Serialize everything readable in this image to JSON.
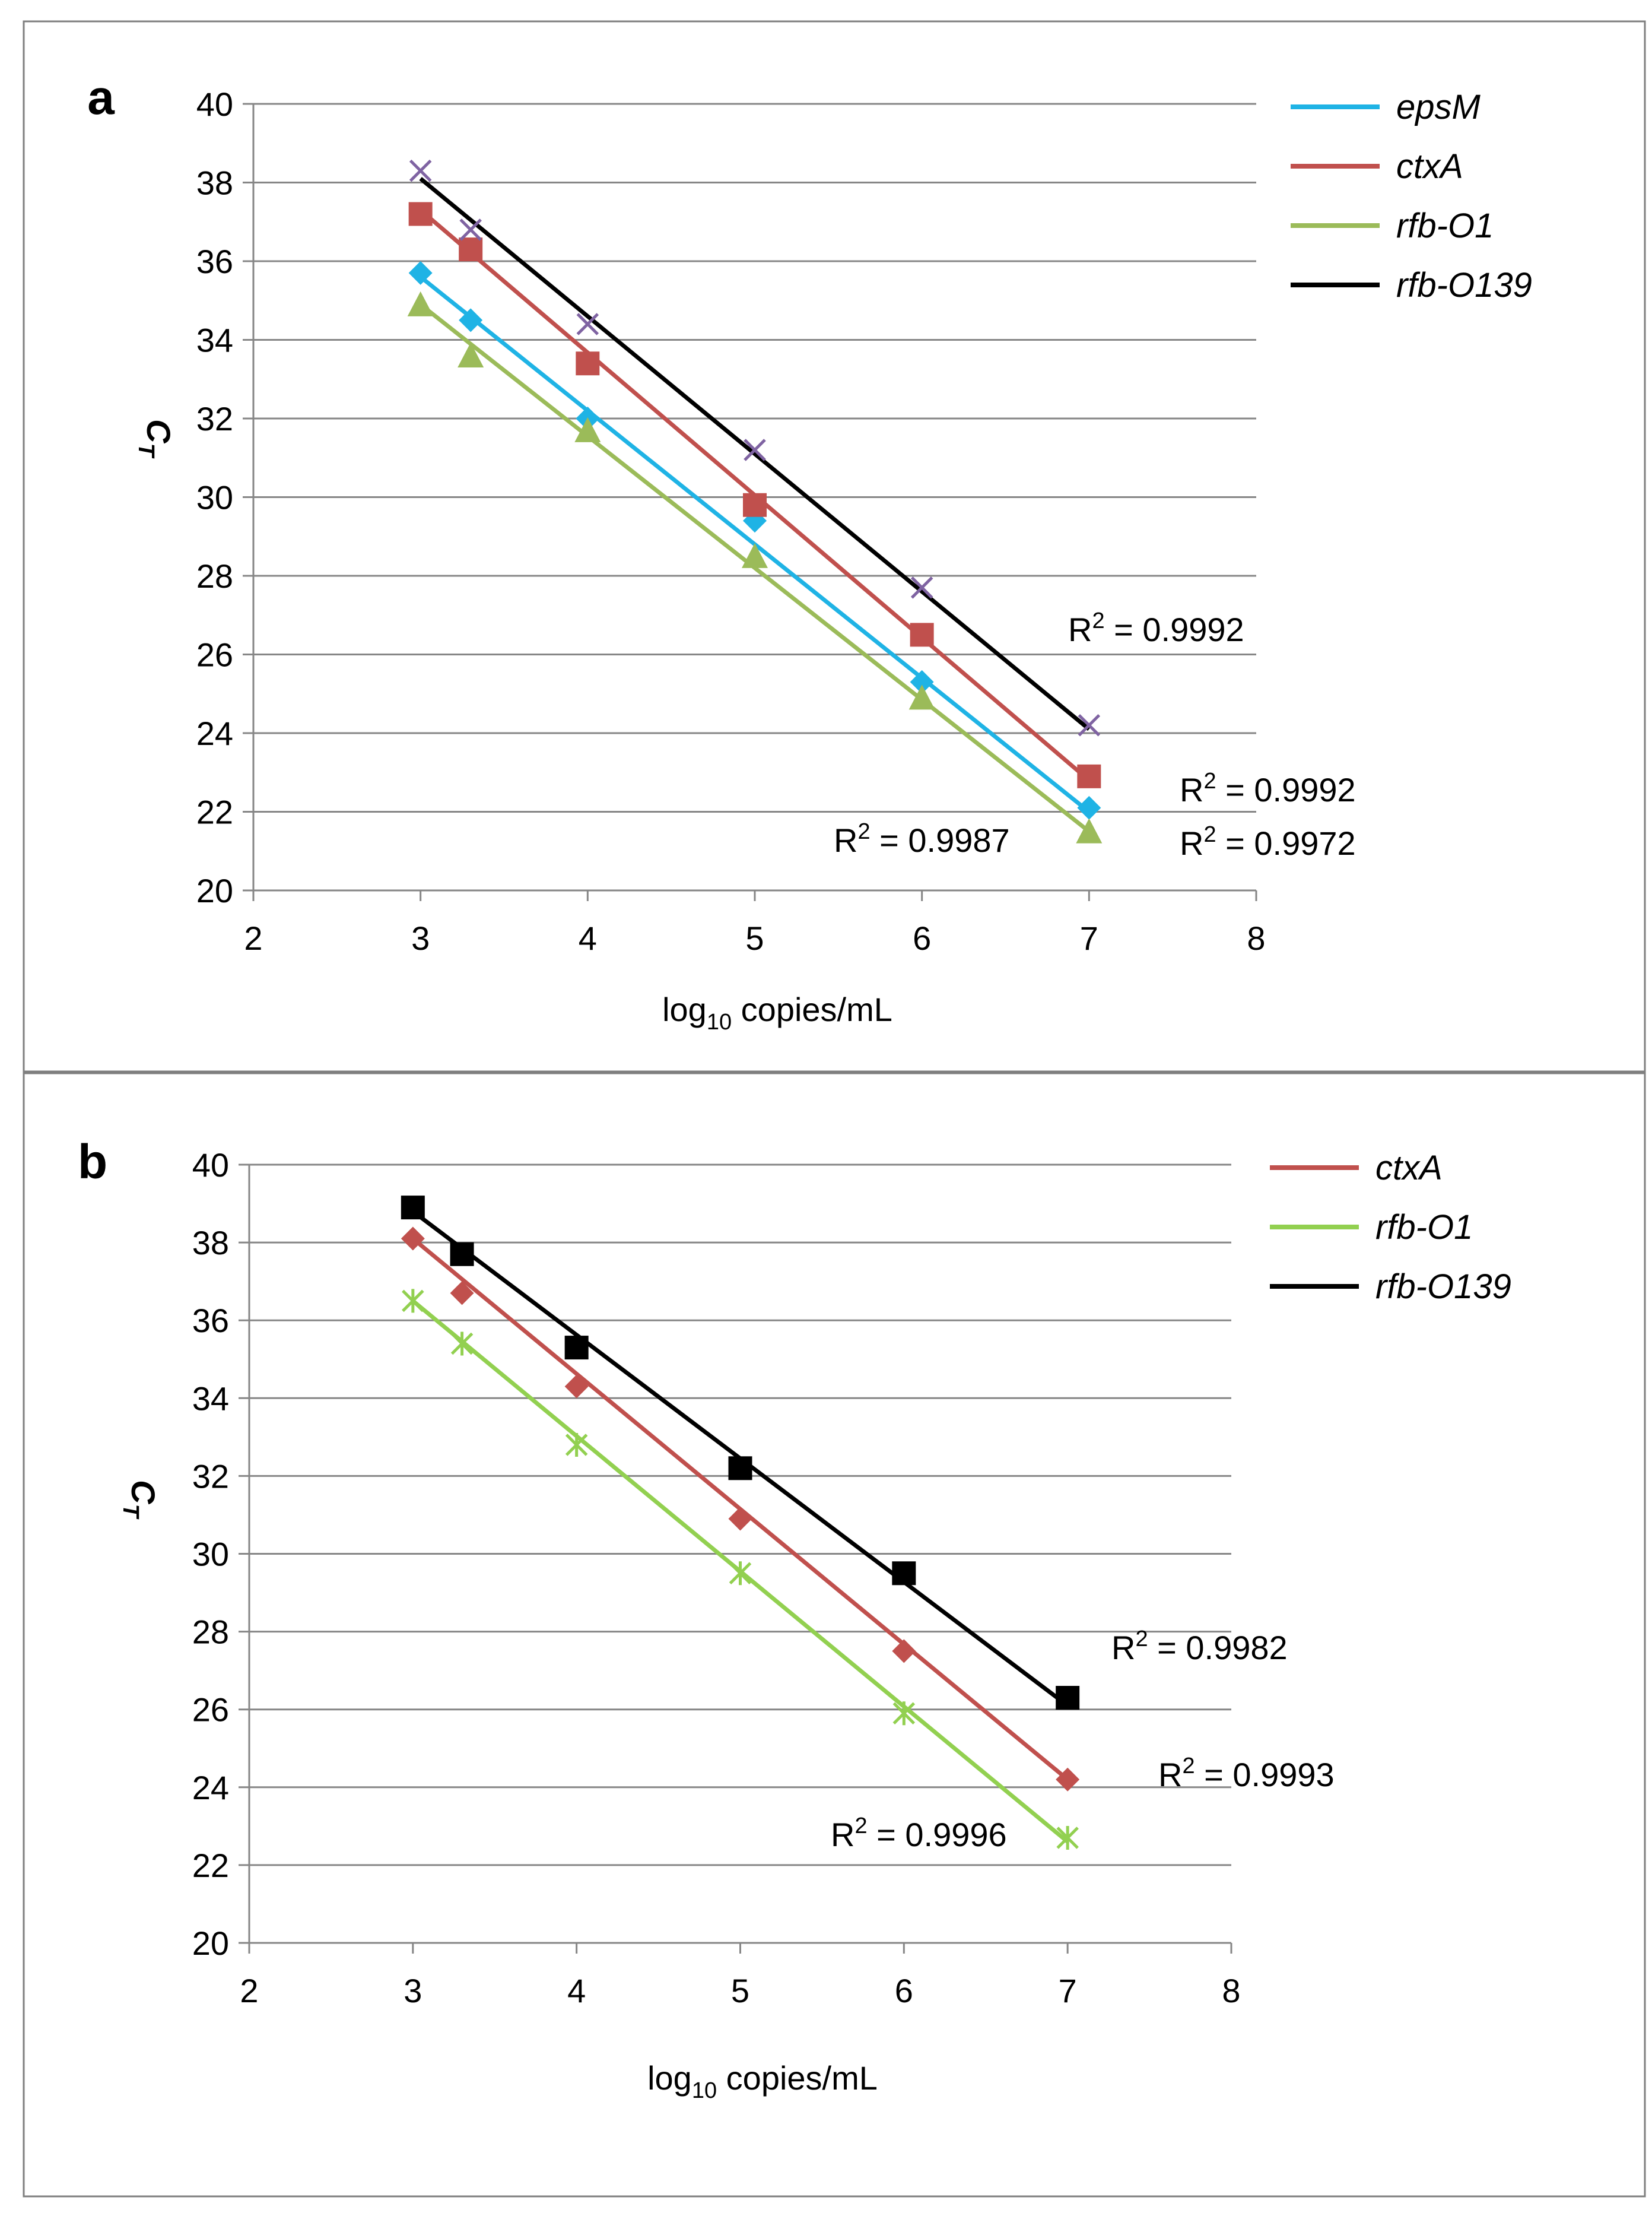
{
  "chart_data": [
    {
      "panel_label": "a",
      "type": "scatter",
      "xlabel_main": "log",
      "xlabel_sub": "10",
      "xlabel_rest": " copies/mL",
      "ylabel_main": "C",
      "ylabel_sub": "T",
      "xlim": [
        2,
        8
      ],
      "ylim": [
        20,
        40
      ],
      "x_ticks": [
        "2",
        "3",
        "4",
        "5",
        "6",
        "7",
        "8"
      ],
      "y_ticks": [
        "20",
        "22",
        "24",
        "26",
        "28",
        "30",
        "32",
        "34",
        "36",
        "38",
        "40"
      ],
      "grid": "horizontal",
      "legend_position": "top-right",
      "series": [
        {
          "name": "epsM",
          "color": "#1fb3e5",
          "marker": "diamond",
          "x": [
            3,
            3.3,
            4,
            5,
            6,
            7
          ],
          "y": [
            35.7,
            34.5,
            32.0,
            29.4,
            25.3,
            22.1
          ],
          "fit": [
            [
              3,
              35.6
            ],
            [
              7,
              22.0
            ]
          ],
          "r2": {
            "main": "R",
            "sup": "2",
            "rest": " = 0.9987"
          }
        },
        {
          "name": "ctxA",
          "color": "#c0504d",
          "marker": "square",
          "x": [
            3,
            3.3,
            4,
            5,
            6,
            7
          ],
          "y": [
            37.2,
            36.3,
            33.4,
            29.8,
            26.5,
            22.9
          ],
          "fit": [
            [
              3,
              37.3
            ],
            [
              7,
              22.8
            ]
          ],
          "r2": {
            "main": "R",
            "sup": "2",
            "rest": " = 0.9992"
          }
        },
        {
          "name": "rfb-O1",
          "color": "#9bbb59",
          "marker": "triangle",
          "x": [
            3,
            3.3,
            4,
            5,
            6,
            7
          ],
          "y": [
            34.9,
            33.6,
            31.7,
            28.5,
            24.9,
            21.5
          ],
          "fit": [
            [
              3,
              34.9
            ],
            [
              7,
              21.5
            ]
          ],
          "r2": {
            "main": "R",
            "sup": "2",
            "rest": " = 0.9972"
          }
        },
        {
          "name": "rfb-O139",
          "color": "#000000",
          "marker": "x",
          "marker_color": "#7f63a2",
          "x": [
            3,
            3.3,
            4,
            5,
            6,
            7
          ],
          "y": [
            38.3,
            36.8,
            34.4,
            31.2,
            27.7,
            24.2
          ],
          "fit": [
            [
              3,
              38.1
            ],
            [
              7,
              24.1
            ]
          ],
          "r2": {
            "main": "R",
            "sup": "2",
            "rest": " = 0.9992"
          }
        }
      ]
    },
    {
      "panel_label": "b",
      "type": "scatter",
      "xlabel_main": "log",
      "xlabel_sub": "10",
      "xlabel_rest": " copies/mL",
      "ylabel_main": "C",
      "ylabel_sub": "T",
      "xlim": [
        2,
        8
      ],
      "ylim": [
        20,
        40
      ],
      "x_ticks": [
        "2",
        "3",
        "4",
        "5",
        "6",
        "7",
        "8"
      ],
      "y_ticks": [
        "20",
        "22",
        "24",
        "26",
        "28",
        "30",
        "32",
        "34",
        "36",
        "38",
        "40"
      ],
      "grid": "horizontal",
      "legend_position": "top-right",
      "series": [
        {
          "name": "ctxA",
          "color": "#c0504d",
          "marker": "diamond",
          "x": [
            3,
            3.3,
            4,
            5,
            6,
            7
          ],
          "y": [
            38.1,
            36.7,
            34.3,
            30.9,
            27.5,
            24.2
          ],
          "fit": [
            [
              3,
              38.1
            ],
            [
              7,
              24.2
            ]
          ],
          "r2": {
            "main": "R",
            "sup": "2",
            "rest": " = 0.9993"
          }
        },
        {
          "name": "rfb-O1",
          "color": "#92d050",
          "marker": "star",
          "x": [
            3,
            3.3,
            4,
            5,
            6,
            7
          ],
          "y": [
            36.5,
            35.4,
            32.8,
            29.5,
            25.9,
            22.7
          ],
          "fit": [
            [
              3,
              36.5
            ],
            [
              7,
              22.6
            ]
          ],
          "r2": {
            "main": "R",
            "sup": "2",
            "rest": " = 0.9996"
          }
        },
        {
          "name": "rfb-O139",
          "color": "#000000",
          "marker": "square",
          "x": [
            3,
            3.3,
            4,
            5,
            6,
            7
          ],
          "y": [
            38.9,
            37.7,
            35.3,
            32.2,
            29.5,
            26.3
          ],
          "fit": [
            [
              3,
              38.8
            ],
            [
              7,
              26.1
            ]
          ],
          "r2": {
            "main": "R",
            "sup": "2",
            "rest": " = 0.9982"
          }
        }
      ]
    }
  ]
}
